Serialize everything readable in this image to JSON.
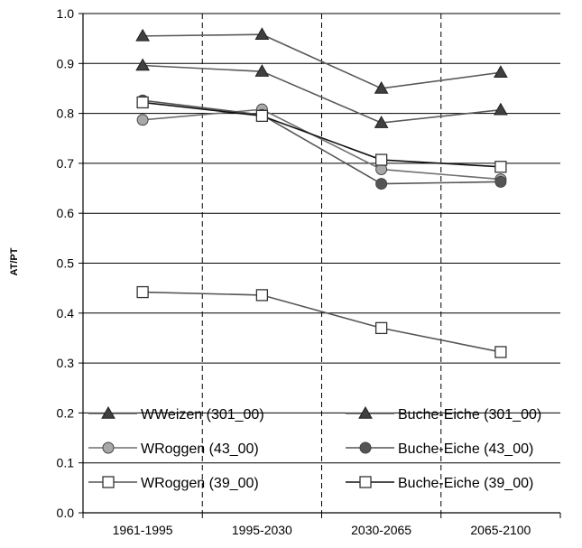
{
  "chart_data": {
    "type": "line",
    "categories": [
      "1961-1995",
      "1995-2030",
      "2030-2065",
      "2065-2100"
    ],
    "ylabel": "AT/PT",
    "ylim": [
      0.0,
      1.0
    ],
    "yticks": [
      "0.0",
      "0.1",
      "0.2",
      "0.3",
      "0.4",
      "0.5",
      "0.6",
      "0.7",
      "0.8",
      "0.9",
      "1.0"
    ],
    "grid": {
      "horizontal": true,
      "vertical_dashed_between_categories": true
    },
    "legend_placement": "bottom, two columns inside plot",
    "series": [
      {
        "name": "WWeizen (301_00)",
        "marker": "triangle-filled",
        "line_color": "#5a5a5a",
        "marker_fill": "#404040",
        "values": [
          0.955,
          0.958,
          0.85,
          0.882
        ]
      },
      {
        "name": "Buche-Eiche (301_00)",
        "marker": "triangle-filled",
        "line_color": "#5a5a5a",
        "marker_fill": "#404040",
        "values": [
          0.896,
          0.884,
          0.781,
          0.807
        ]
      },
      {
        "name": "WRoggen (43_00)",
        "marker": "circle-gray",
        "line_color": "#6e6e6e",
        "marker_fill": "#a8a8a8",
        "values": [
          0.787,
          0.808,
          0.688,
          0.668
        ]
      },
      {
        "name": "Buche-Eiche (43_00)",
        "marker": "circle-dark",
        "line_color": "#555555",
        "marker_fill": "#555555",
        "values": [
          0.826,
          0.797,
          0.659,
          0.663
        ]
      },
      {
        "name": "WRoggen (39_00)",
        "marker": "square-open",
        "line_color": "#555555",
        "marker_fill": "#ffffff",
        "values": [
          0.442,
          0.436,
          0.37,
          0.322
        ]
      },
      {
        "name": "Buche-Eiche (39_00)",
        "marker": "square-open",
        "line_color": "#111111",
        "marker_fill": "#ffffff",
        "values": [
          0.822,
          0.795,
          0.707,
          0.693
        ]
      }
    ]
  }
}
